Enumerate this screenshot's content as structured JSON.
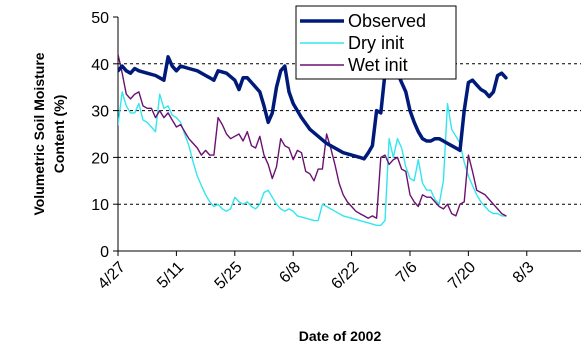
{
  "chart_data": {
    "type": "line",
    "title": "",
    "xlabel": "Date of 2002",
    "ylabel_lines": [
      "Volumetric Soil Moisture",
      "Content (%)"
    ],
    "x_tick_labels": [
      "4/27",
      "5/11",
      "5/25",
      "6/8",
      "6/22",
      "7/6",
      "7/20",
      "8/3"
    ],
    "x_tick_days": [
      0,
      14,
      28,
      42,
      56,
      70,
      84,
      98
    ],
    "x_range_days": [
      0,
      111
    ],
    "ylim": [
      0,
      50
    ],
    "y_ticks": [
      0,
      10,
      20,
      30,
      40,
      50
    ],
    "grid": "horizontal dashed at 10, 20, 30, 40",
    "legend": "top-center",
    "series": [
      {
        "name": "Observed",
        "color": "#001a7a",
        "points": [
          [
            0,
            38.5
          ],
          [
            1,
            39.5
          ],
          [
            2,
            38.5
          ],
          [
            3,
            38
          ],
          [
            4,
            39
          ],
          [
            5,
            38.5
          ],
          [
            7,
            38
          ],
          [
            9,
            37.5
          ],
          [
            10,
            37
          ],
          [
            11,
            36.5
          ],
          [
            12,
            41.5
          ],
          [
            13,
            39.5
          ],
          [
            14,
            38.5
          ],
          [
            15,
            39.5
          ],
          [
            17,
            39
          ],
          [
            19,
            38.5
          ],
          [
            21,
            37.5
          ],
          [
            22,
            37
          ],
          [
            23,
            36.5
          ],
          [
            24,
            38.5
          ],
          [
            26,
            38
          ],
          [
            28,
            36.5
          ],
          [
            29,
            34.5
          ],
          [
            30,
            37
          ],
          [
            31,
            37
          ],
          [
            32,
            36
          ],
          [
            34,
            34
          ],
          [
            35,
            31
          ],
          [
            36,
            27.5
          ],
          [
            37,
            29.5
          ],
          [
            38,
            35
          ],
          [
            39,
            38.5
          ],
          [
            40,
            39.5
          ],
          [
            41,
            34
          ],
          [
            42,
            31.5
          ],
          [
            44,
            28.5
          ],
          [
            46,
            26
          ],
          [
            48,
            24.5
          ],
          [
            50,
            23
          ],
          [
            52,
            22
          ],
          [
            54,
            21
          ],
          [
            56,
            20.5
          ],
          [
            58,
            20
          ],
          [
            59,
            19.7
          ],
          [
            60,
            21
          ],
          [
            61,
            22.5
          ],
          [
            62,
            30
          ],
          [
            63,
            29.5
          ],
          [
            64,
            38
          ],
          [
            65,
            42
          ],
          [
            66,
            40
          ],
          [
            67,
            38
          ],
          [
            68,
            36
          ],
          [
            69,
            34
          ],
          [
            70,
            30
          ],
          [
            71,
            27.5
          ],
          [
            72,
            25.5
          ],
          [
            73,
            24
          ],
          [
            74,
            23.5
          ],
          [
            75,
            23.5
          ],
          [
            76,
            24
          ],
          [
            77,
            24
          ],
          [
            78,
            23.5
          ],
          [
            79,
            23
          ],
          [
            80,
            22.5
          ],
          [
            81,
            22
          ],
          [
            82,
            21.5
          ],
          [
            83,
            30
          ],
          [
            84,
            36
          ],
          [
            85,
            36.5
          ],
          [
            86,
            35.5
          ],
          [
            87,
            34.5
          ],
          [
            88,
            34
          ],
          [
            89,
            33
          ],
          [
            90,
            34
          ],
          [
            91,
            37.5
          ],
          [
            92,
            38
          ],
          [
            93,
            37
          ]
        ]
      },
      {
        "name": "Dry init",
        "color": "#33e6ee",
        "points": [
          [
            0,
            27
          ],
          [
            1,
            34
          ],
          [
            2,
            31
          ],
          [
            3,
            29.5
          ],
          [
            4,
            29.5
          ],
          [
            5,
            31.5
          ],
          [
            6,
            28
          ],
          [
            7,
            27.5
          ],
          [
            8,
            26.5
          ],
          [
            9,
            25.5
          ],
          [
            10,
            33.5
          ],
          [
            11,
            30.5
          ],
          [
            12,
            31
          ],
          [
            13,
            29
          ],
          [
            14,
            28.5
          ],
          [
            15,
            27.5
          ],
          [
            16,
            25
          ],
          [
            17,
            22.5
          ],
          [
            18,
            19
          ],
          [
            19,
            16
          ],
          [
            20,
            14
          ],
          [
            21,
            12
          ],
          [
            22,
            10.5
          ],
          [
            23,
            9.5
          ],
          [
            24,
            10
          ],
          [
            25,
            9
          ],
          [
            26,
            8.5
          ],
          [
            27,
            9
          ],
          [
            28,
            11.5
          ],
          [
            29,
            10.5
          ],
          [
            30,
            10
          ],
          [
            31,
            10.5
          ],
          [
            32,
            9.5
          ],
          [
            33,
            9
          ],
          [
            34,
            10
          ],
          [
            35,
            12.5
          ],
          [
            36,
            13
          ],
          [
            37,
            11.5
          ],
          [
            38,
            10
          ],
          [
            39,
            9
          ],
          [
            40,
            8.5
          ],
          [
            41,
            9
          ],
          [
            42,
            8.5
          ],
          [
            43,
            7.5
          ],
          [
            45,
            7
          ],
          [
            47,
            6.5
          ],
          [
            48,
            6.5
          ],
          [
            49,
            10
          ],
          [
            50,
            9.5
          ],
          [
            52,
            8.5
          ],
          [
            54,
            7.5
          ],
          [
            56,
            7
          ],
          [
            58,
            6.5
          ],
          [
            60,
            6
          ],
          [
            62,
            5.5
          ],
          [
            63,
            5.5
          ],
          [
            64,
            6.5
          ],
          [
            65,
            24
          ],
          [
            66,
            20
          ],
          [
            67,
            24
          ],
          [
            68,
            22
          ],
          [
            69,
            18
          ],
          [
            70,
            15.5
          ],
          [
            71,
            15
          ],
          [
            72,
            19.5
          ],
          [
            73,
            14.5
          ],
          [
            74,
            13
          ],
          [
            75,
            13
          ],
          [
            76,
            11
          ],
          [
            77,
            10
          ],
          [
            78,
            15
          ],
          [
            79,
            31.5
          ],
          [
            80,
            26
          ],
          [
            81,
            24.5
          ],
          [
            82,
            23
          ],
          [
            83,
            19
          ],
          [
            84,
            16
          ],
          [
            85,
            14
          ],
          [
            86,
            12
          ],
          [
            87,
            10.5
          ],
          [
            88,
            9.5
          ],
          [
            89,
            8.5
          ],
          [
            90,
            8
          ],
          [
            91,
            8
          ],
          [
            92,
            7.5
          ],
          [
            93,
            7.5
          ]
        ]
      },
      {
        "name": "Wet init",
        "color": "#6b1270",
        "points": [
          [
            0,
            42
          ],
          [
            1,
            38
          ],
          [
            2,
            33.5
          ],
          [
            3,
            32.5
          ],
          [
            4,
            33.5
          ],
          [
            5,
            34
          ],
          [
            6,
            31
          ],
          [
            7,
            30.5
          ],
          [
            8,
            30.5
          ],
          [
            9,
            28.5
          ],
          [
            10,
            30
          ],
          [
            11,
            28.5
          ],
          [
            12,
            29.5
          ],
          [
            13,
            28
          ],
          [
            14,
            26.5
          ],
          [
            15,
            27
          ],
          [
            16,
            25.5
          ],
          [
            17,
            24
          ],
          [
            18,
            23
          ],
          [
            19,
            22
          ],
          [
            20,
            20.5
          ],
          [
            21,
            21.5
          ],
          [
            22,
            20.5
          ],
          [
            23,
            20.5
          ],
          [
            24,
            28.5
          ],
          [
            25,
            27
          ],
          [
            26,
            25
          ],
          [
            27,
            24
          ],
          [
            28,
            24.5
          ],
          [
            29,
            25
          ],
          [
            30,
            23.5
          ],
          [
            31,
            25.5
          ],
          [
            32,
            22.5
          ],
          [
            33,
            22
          ],
          [
            34,
            24.5
          ],
          [
            35,
            20.5
          ],
          [
            36,
            18.5
          ],
          [
            37,
            15.5
          ],
          [
            38,
            18
          ],
          [
            39,
            24
          ],
          [
            40,
            22.5
          ],
          [
            41,
            22
          ],
          [
            42,
            19.5
          ],
          [
            43,
            21.5
          ],
          [
            44,
            21
          ],
          [
            45,
            17
          ],
          [
            46,
            16.5
          ],
          [
            47,
            15
          ],
          [
            48,
            17.5
          ],
          [
            49,
            17.5
          ],
          [
            50,
            25
          ],
          [
            51,
            22
          ],
          [
            52,
            18.5
          ],
          [
            53,
            14.5
          ],
          [
            54,
            12
          ],
          [
            55,
            10.5
          ],
          [
            56,
            9.5
          ],
          [
            57,
            8.5
          ],
          [
            58,
            8
          ],
          [
            59,
            7.5
          ],
          [
            60,
            7
          ],
          [
            61,
            7.5
          ],
          [
            62,
            7
          ],
          [
            63,
            20
          ],
          [
            64,
            20.5
          ],
          [
            65,
            18.5
          ],
          [
            66,
            19.5
          ],
          [
            67,
            20
          ],
          [
            68,
            17.5
          ],
          [
            69,
            17
          ],
          [
            70,
            12
          ],
          [
            71,
            10.5
          ],
          [
            72,
            9.5
          ],
          [
            73,
            12
          ],
          [
            74,
            11.5
          ],
          [
            75,
            11.5
          ],
          [
            76,
            10.5
          ],
          [
            77,
            9.5
          ],
          [
            78,
            9
          ],
          [
            79,
            10
          ],
          [
            80,
            8
          ],
          [
            81,
            7.5
          ],
          [
            82,
            10
          ],
          [
            83,
            10.5
          ],
          [
            84,
            20.5
          ],
          [
            85,
            17
          ],
          [
            86,
            13
          ],
          [
            87,
            12.5
          ],
          [
            88,
            12
          ],
          [
            89,
            11
          ],
          [
            90,
            10
          ],
          [
            91,
            9
          ],
          [
            92,
            8
          ],
          [
            93,
            7.5
          ]
        ]
      }
    ]
  }
}
